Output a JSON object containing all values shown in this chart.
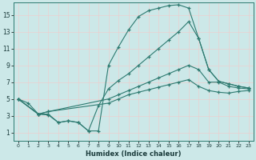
{
  "xlabel": "Humidex (Indice chaleur)",
  "bg_color": "#cce8e8",
  "grid_color": "#ffffff",
  "line_color": "#2d7a70",
  "xlim": [
    -0.5,
    23.5
  ],
  "ylim": [
    0,
    16.5
  ],
  "xticks": [
    0,
    1,
    2,
    3,
    4,
    5,
    6,
    7,
    8,
    9,
    10,
    11,
    12,
    13,
    14,
    15,
    16,
    17,
    18,
    19,
    20,
    21,
    22,
    23
  ],
  "yticks": [
    1,
    3,
    5,
    7,
    9,
    11,
    13,
    15
  ],
  "c1x": [
    0,
    1,
    2,
    3,
    4,
    5,
    6,
    7,
    8,
    9,
    10,
    11,
    12,
    13,
    14,
    15,
    16,
    17,
    18,
    19,
    20,
    21,
    22,
    23
  ],
  "c1y": [
    5.0,
    4.5,
    3.2,
    3.1,
    2.2,
    2.4,
    2.2,
    1.2,
    1.2,
    9.0,
    11.2,
    13.2,
    14.8,
    15.5,
    15.8,
    16.1,
    16.2,
    15.8,
    12.2,
    8.5,
    7.1,
    6.8,
    6.5,
    6.3
  ],
  "c2x": [
    0,
    2,
    3,
    4,
    5,
    6,
    7,
    8,
    9,
    10,
    11,
    12,
    13,
    14,
    15,
    16,
    17,
    18,
    19,
    20,
    21,
    22,
    23
  ],
  "c2y": [
    5.0,
    3.2,
    3.2,
    2.2,
    2.4,
    2.2,
    1.2,
    4.2,
    6.2,
    7.2,
    8.0,
    9.0,
    10.0,
    11.0,
    12.0,
    13.0,
    14.2,
    12.2,
    8.5,
    7.1,
    6.8,
    6.5,
    6.3
  ],
  "c3x": [
    0,
    2,
    3,
    9,
    10,
    11,
    12,
    13,
    14,
    15,
    16,
    17,
    18,
    19,
    20,
    21,
    22,
    23
  ],
  "c3y": [
    5.0,
    3.2,
    3.5,
    5.0,
    5.5,
    6.0,
    6.5,
    7.0,
    7.5,
    8.0,
    8.5,
    9.0,
    8.5,
    7.0,
    7.0,
    6.5,
    6.3,
    6.2
  ],
  "c4x": [
    0,
    2,
    3,
    9,
    10,
    11,
    12,
    13,
    14,
    15,
    16,
    17,
    18,
    19,
    20,
    21,
    22,
    23
  ],
  "c4y": [
    5.0,
    3.2,
    3.5,
    4.5,
    5.0,
    5.5,
    5.8,
    6.1,
    6.4,
    6.7,
    7.0,
    7.3,
    6.5,
    6.0,
    5.8,
    5.7,
    5.9,
    6.0
  ]
}
